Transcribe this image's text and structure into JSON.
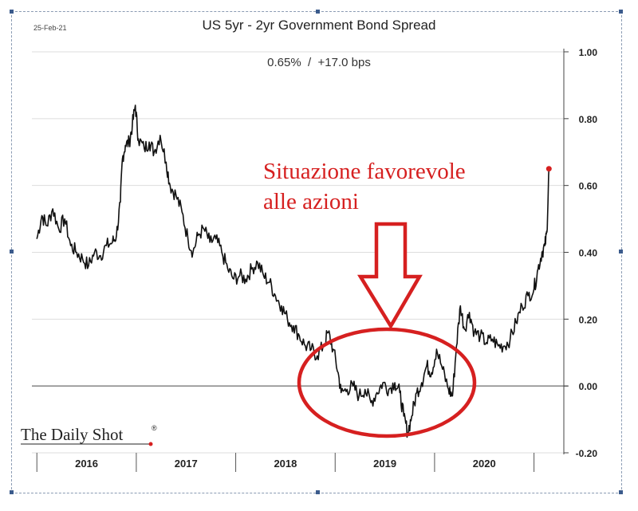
{
  "date_stamp": "25-Feb-21",
  "brand": "The Daily Shot",
  "brand_mark": "®",
  "chart_data": {
    "type": "line",
    "title": "US 5yr - 2yr Government Bond Spread",
    "subtitle": "0.65%  /  +17.0 bps",
    "x_labels": [
      "2016",
      "2017",
      "2018",
      "2019",
      "2020"
    ],
    "ylim": [
      -0.2,
      1.0
    ],
    "y_ticks": [
      {
        "value": 1.0,
        "label": "1.00"
      },
      {
        "value": 0.8,
        "label": "0.80"
      },
      {
        "value": 0.6,
        "label": "0.60"
      },
      {
        "value": 0.4,
        "label": "0.40"
      },
      {
        "value": 0.2,
        "label": "0.20"
      },
      {
        "value": 0.0,
        "label": "0.00"
      },
      {
        "value": -0.2,
        "label": "-0.20"
      }
    ],
    "xlim": [
      2015.95,
      2021.3
    ],
    "year_boundaries": [
      2016,
      2017,
      2018,
      2019,
      2020,
      2021
    ],
    "grid": "horizontal",
    "series": [
      {
        "color": "#111111",
        "points": [
          [
            2016.0,
            0.44
          ],
          [
            2016.05,
            0.51
          ],
          [
            2016.1,
            0.48
          ],
          [
            2016.16,
            0.53
          ],
          [
            2016.22,
            0.47
          ],
          [
            2016.28,
            0.5
          ],
          [
            2016.34,
            0.42
          ],
          [
            2016.4,
            0.4
          ],
          [
            2016.46,
            0.38
          ],
          [
            2016.52,
            0.36
          ],
          [
            2016.58,
            0.4
          ],
          [
            2016.64,
            0.39
          ],
          [
            2016.7,
            0.42
          ],
          [
            2016.76,
            0.43
          ],
          [
            2016.8,
            0.45
          ],
          [
            2016.84,
            0.55
          ],
          [
            2016.86,
            0.68
          ],
          [
            2016.89,
            0.72
          ],
          [
            2016.93,
            0.73
          ],
          [
            2016.96,
            0.78
          ],
          [
            2016.99,
            0.84
          ],
          [
            2017.02,
            0.74
          ],
          [
            2017.08,
            0.71
          ],
          [
            2017.13,
            0.73
          ],
          [
            2017.18,
            0.7
          ],
          [
            2017.24,
            0.75
          ],
          [
            2017.3,
            0.67
          ],
          [
            2017.34,
            0.6
          ],
          [
            2017.4,
            0.57
          ],
          [
            2017.46,
            0.52
          ],
          [
            2017.52,
            0.44
          ],
          [
            2017.57,
            0.4
          ],
          [
            2017.62,
            0.45
          ],
          [
            2017.68,
            0.47
          ],
          [
            2017.74,
            0.43
          ],
          [
            2017.8,
            0.44
          ],
          [
            2017.86,
            0.4
          ],
          [
            2017.92,
            0.35
          ],
          [
            2017.98,
            0.32
          ],
          [
            2018.04,
            0.33
          ],
          [
            2018.1,
            0.32
          ],
          [
            2018.16,
            0.35
          ],
          [
            2018.22,
            0.37
          ],
          [
            2018.28,
            0.33
          ],
          [
            2018.34,
            0.31
          ],
          [
            2018.4,
            0.27
          ],
          [
            2018.46,
            0.24
          ],
          [
            2018.52,
            0.2
          ],
          [
            2018.58,
            0.18
          ],
          [
            2018.64,
            0.15
          ],
          [
            2018.7,
            0.12
          ],
          [
            2018.76,
            0.11
          ],
          [
            2018.82,
            0.09
          ],
          [
            2018.88,
            0.12
          ],
          [
            2018.93,
            0.16
          ],
          [
            2018.98,
            0.11
          ],
          [
            2019.03,
            0.04
          ],
          [
            2019.06,
            -0.02
          ],
          [
            2019.12,
            -0.01
          ],
          [
            2019.18,
            0.0
          ],
          [
            2019.24,
            -0.03
          ],
          [
            2019.3,
            -0.01
          ],
          [
            2019.36,
            -0.05
          ],
          [
            2019.42,
            -0.02
          ],
          [
            2019.48,
            0.01
          ],
          [
            2019.54,
            -0.01
          ],
          [
            2019.6,
            0.01
          ],
          [
            2019.65,
            -0.02
          ],
          [
            2019.69,
            -0.09
          ],
          [
            2019.73,
            -0.14
          ],
          [
            2019.77,
            -0.09
          ],
          [
            2019.82,
            -0.02
          ],
          [
            2019.87,
            0.01
          ],
          [
            2019.92,
            0.06
          ],
          [
            2019.97,
            0.04
          ],
          [
            2020.02,
            0.11
          ],
          [
            2020.08,
            0.05
          ],
          [
            2020.14,
            -0.01
          ],
          [
            2020.18,
            -0.03
          ],
          [
            2020.22,
            0.12
          ],
          [
            2020.26,
            0.24
          ],
          [
            2020.3,
            0.17
          ],
          [
            2020.35,
            0.22
          ],
          [
            2020.4,
            0.16
          ],
          [
            2020.46,
            0.15
          ],
          [
            2020.52,
            0.13
          ],
          [
            2020.58,
            0.14
          ],
          [
            2020.64,
            0.12
          ],
          [
            2020.7,
            0.12
          ],
          [
            2020.76,
            0.14
          ],
          [
            2020.82,
            0.19
          ],
          [
            2020.88,
            0.24
          ],
          [
            2020.94,
            0.27
          ],
          [
            2021.0,
            0.29
          ],
          [
            2021.04,
            0.35
          ],
          [
            2021.08,
            0.4
          ],
          [
            2021.11,
            0.42
          ],
          [
            2021.13,
            0.46
          ],
          [
            2021.15,
            0.65
          ]
        ]
      }
    ],
    "last_point": {
      "x": 2021.15,
      "y": 0.65,
      "color": "#d62020"
    },
    "annotation": {
      "text_lines": [
        "Situazione favorevole",
        "alle azioni"
      ],
      "color": "#d62020"
    }
  }
}
